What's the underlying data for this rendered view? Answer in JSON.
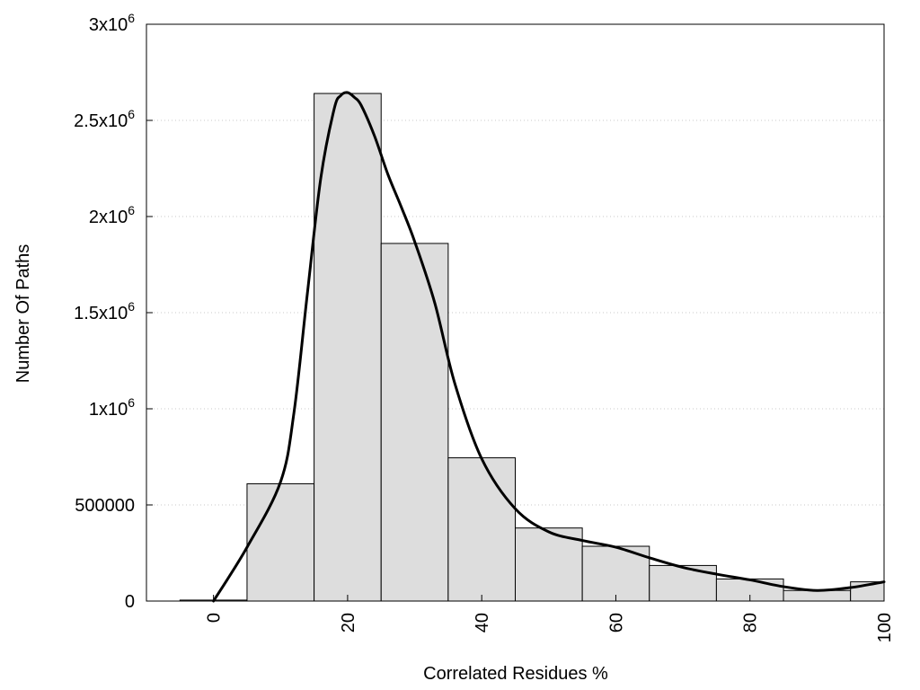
{
  "chart_data": {
    "type": "bar",
    "xlabel": "Correlated Residues %",
    "ylabel": "Number Of Paths",
    "xlim": [
      -10,
      100
    ],
    "ylim": [
      0,
      3000000
    ],
    "grid": true,
    "x_ticks": [
      {
        "value": 0,
        "label": "0"
      },
      {
        "value": 20,
        "label": "20"
      },
      {
        "value": 40,
        "label": "40"
      },
      {
        "value": 60,
        "label": "60"
      },
      {
        "value": 80,
        "label": "80"
      },
      {
        "value": 100,
        "label": "100"
      }
    ],
    "y_ticks": [
      {
        "value": 0,
        "base": "0",
        "sup": ""
      },
      {
        "value": 500000,
        "base": "500000",
        "sup": ""
      },
      {
        "value": 1000000,
        "base": "1x10",
        "sup": "6"
      },
      {
        "value": 1500000,
        "base": "1.5x10",
        "sup": "6"
      },
      {
        "value": 2000000,
        "base": "2x10",
        "sup": "6"
      },
      {
        "value": 2500000,
        "base": "2.5x10",
        "sup": "6"
      },
      {
        "value": 3000000,
        "base": "3x10",
        "sup": "6"
      }
    ],
    "bars": [
      {
        "x": 0,
        "value": 5000
      },
      {
        "x": 10,
        "value": 610000
      },
      {
        "x": 20,
        "value": 2640000
      },
      {
        "x": 30,
        "value": 1860000
      },
      {
        "x": 40,
        "value": 745000
      },
      {
        "x": 50,
        "value": 380000
      },
      {
        "x": 60,
        "value": 285000
      },
      {
        "x": 70,
        "value": 185000
      },
      {
        "x": 80,
        "value": 115000
      },
      {
        "x": 90,
        "value": 55000
      },
      {
        "x": 100,
        "value": 100000
      }
    ],
    "bar_width": 10,
    "curve": {
      "x": [
        0,
        5,
        10,
        12,
        14,
        16,
        18,
        19,
        20,
        21,
        22,
        24,
        26,
        28,
        30,
        33,
        36,
        40,
        45,
        50,
        55,
        60,
        65,
        70,
        75,
        80,
        85,
        90,
        95,
        100
      ],
      "y": [
        0,
        280000,
        620000,
        980000,
        1600000,
        2200000,
        2560000,
        2630000,
        2645000,
        2620000,
        2580000,
        2420000,
        2220000,
        2050000,
        1870000,
        1550000,
        1130000,
        740000,
        480000,
        360000,
        315000,
        280000,
        225000,
        175000,
        140000,
        110000,
        75000,
        55000,
        70000,
        100000
      ]
    }
  }
}
